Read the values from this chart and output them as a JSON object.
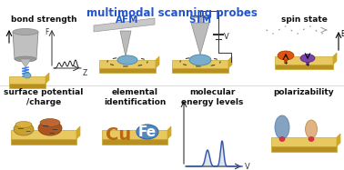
{
  "title": "multimodal scanning probes",
  "title_color": "#2255cc",
  "title_fontsize": 8.5,
  "bg_color": "#ffffff",
  "labels": {
    "bond_strength": "bond strength",
    "afm": "AFM",
    "stm": "STM",
    "spin_state": "spin state",
    "surface_potential": "surface potential\n/charge",
    "elemental_id": "elemental\nidentification",
    "mol_energy": "molecular\nenergy levels",
    "polarizability": "polarizability"
  },
  "label_color": "#111111",
  "blue_label_color": "#2255cc",
  "gold_top": "#E8C860",
  "gold_front": "#B89020",
  "gold_right": "#D4A820",
  "gold_edge": "#C8A830",
  "tip_light": "#CCCCCC",
  "tip_mid": "#AAAAAA",
  "tip_dark": "#888888",
  "spring_color": "#3377EE",
  "molecule_blue": "#7AADCC",
  "molecule_edge": "#4488AA",
  "dashed_color": "#444444",
  "orange_mush": "#DD5511",
  "purple_mush": "#7744AA",
  "chart_blue": "#3355AA",
  "polarize_blue": "#7799BB",
  "polarize_orange": "#DDAA77",
  "red_dot": "#DD3344",
  "cu_color": "#BB6611",
  "fe_color": "#5588BB",
  "fe_text": "#FFFFFF",
  "label_fontsize": 6.5,
  "afm_stm_fontsize": 7.5,
  "axis_color": "#333333"
}
